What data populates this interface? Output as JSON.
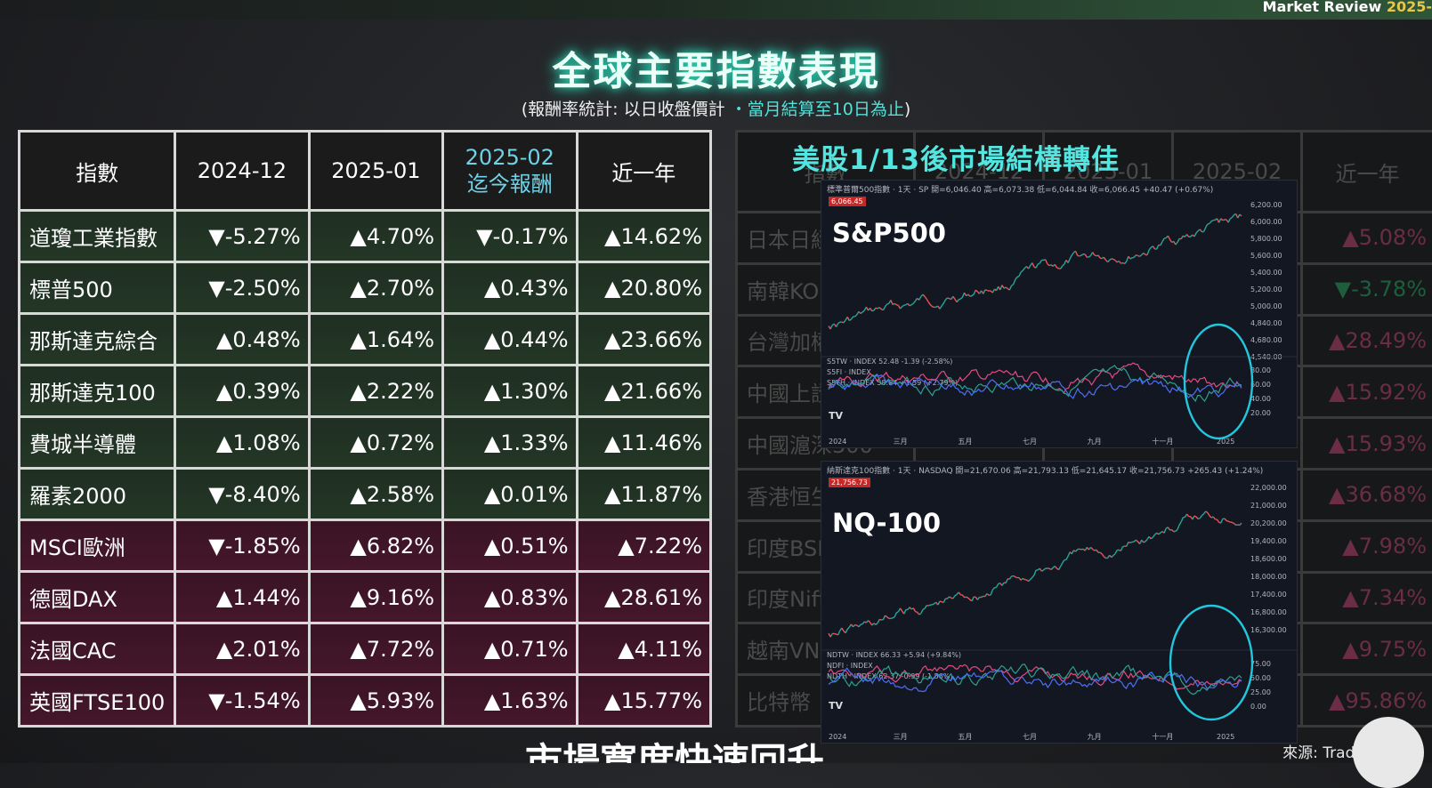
{
  "header": {
    "brand_text": "Market Review",
    "brand_year": "2025-"
  },
  "title": "全球主要指數表現",
  "subtitle": {
    "part1": "(報酬率統計: 以日收盤價計",
    "part2": "・當月結算至10日為止",
    "part3": ")"
  },
  "left_table": {
    "headers": [
      "指數",
      "2024-12",
      "2025-01",
      "2025-02",
      "迄今報酬",
      "近一年"
    ],
    "rows": [
      {
        "name": "道瓊工業指數",
        "v1": "▼-5.27%",
        "v2": "▲4.70%",
        "v3": "▼-0.17%",
        "v4": "▲14.62%"
      },
      {
        "name": "標普500",
        "v1": "▼-2.50%",
        "v2": "▲2.70%",
        "v3": "▲0.43%",
        "v4": "▲20.80%"
      },
      {
        "name": "那斯達克綜合",
        "v1": "▲0.48%",
        "v2": "▲1.64%",
        "v3": "▲0.44%",
        "v4": "▲23.66%"
      },
      {
        "name": "那斯達克100",
        "v1": "▲0.39%",
        "v2": "▲2.22%",
        "v3": "▲1.30%",
        "v4": "▲21.66%"
      },
      {
        "name": "費城半導體",
        "v1": "▲1.08%",
        "v2": "▲0.72%",
        "v3": "▲1.33%",
        "v4": "▲11.46%"
      },
      {
        "name": "羅素2000",
        "v1": "▼-8.40%",
        "v2": "▲2.58%",
        "v3": "▲0.01%",
        "v4": "▲11.87%"
      },
      {
        "name": "MSCI歐洲",
        "v1": "▼-1.85%",
        "v2": "▲6.82%",
        "v3": "▲0.51%",
        "v4": "▲7.22%"
      },
      {
        "name": "德國DAX",
        "v1": "▲1.44%",
        "v2": "▲9.16%",
        "v3": "▲0.83%",
        "v4": "▲28.61%"
      },
      {
        "name": "法國CAC",
        "v1": "▲2.01%",
        "v2": "▲7.72%",
        "v3": "▲0.71%",
        "v4": "▲4.11%"
      },
      {
        "name": "英國FTSE100",
        "v1": "▼-1.54%",
        "v2": "▲5.93%",
        "v3": "▲1.63%",
        "v4": "▲15.77%"
      }
    ]
  },
  "right_table": {
    "headers": [
      "指數",
      "2024-12",
      "2025-01",
      "2025-02",
      "近一年"
    ],
    "rows": [
      {
        "name": "日本日經",
        "last": "▲5.08%"
      },
      {
        "name": "南韓KO",
        "last": "▼-3.78%"
      },
      {
        "name": "台灣加權",
        "last": "▲28.49%"
      },
      {
        "name": "中國上證",
        "last": "▲15.92%"
      },
      {
        "name": "中國滬深300",
        "last": "▲15.93%"
      },
      {
        "name": "香港恒生",
        "last": "▲36.68%"
      },
      {
        "name": "印度BSE",
        "last": "▲7.98%"
      },
      {
        "name": "印度Nifty",
        "last": "▲7.34%"
      },
      {
        "name": "越南VN",
        "last": "▲9.75%"
      },
      {
        "name": "比特幣",
        "last": "▲95.86%"
      }
    ]
  },
  "overlay_title": "美股1/13後市場結構轉佳",
  "chart1": {
    "label": "S&P500",
    "header": "標準普爾500指數 · 1天 · SP   開=6,046.40 高=6,073.38 低=6,044.84 收=6,066.45 +40.47 (+0.67%)",
    "price": "6,066.45",
    "sub_header": "S5TW · INDEX 52.48 -1.39 (-2.58%)",
    "sub_header2": "S5FI · INDEX",
    "sub_header3": "S5TH · INDEX 58.64 +1.59 (+2.79%)",
    "y_ticks": [
      "6,200.00",
      "6,000.00",
      "5,800.00",
      "5,600.00",
      "5,400.00",
      "5,200.00",
      "5,000.00",
      "4,840.00",
      "4,680.00",
      "4,540.00"
    ],
    "sub_ticks": [
      "80.00",
      "60.00",
      "40.00",
      "20.00"
    ],
    "x_ticks": [
      "2024",
      "三月",
      "五月",
      "七月",
      "九月",
      "十一月",
      "2025"
    ]
  },
  "chart2": {
    "label": "NQ-100",
    "header": "納斯達克100指數 · 1天 · NASDAQ   開=21,670.06 高=21,793.13 低=21,645.17 收=21,756.73 +265.43 (+1.24%)",
    "price": "21,756.73",
    "sub_header": "NDTW · INDEX 66.33 +5.94 (+9.84%)",
    "sub_header2": "NDFI · INDEX",
    "sub_header3": "NDTH · INDEX 62.37 -0.99 (-1.56%)",
    "y_ticks": [
      "22,000.00",
      "21,000.00",
      "20,200.00",
      "19,400.00",
      "18,600.00",
      "18,000.00",
      "17,400.00",
      "16,800.00",
      "16,300.00"
    ],
    "sub_ticks": [
      "75.00",
      "50.00",
      "25.00",
      "0.00"
    ],
    "x_ticks": [
      "2024",
      "三月",
      "五月",
      "七月",
      "九月",
      "十一月",
      "2025"
    ]
  },
  "source": "來源: TradingView",
  "caption": "市場寬度快速回升"
}
